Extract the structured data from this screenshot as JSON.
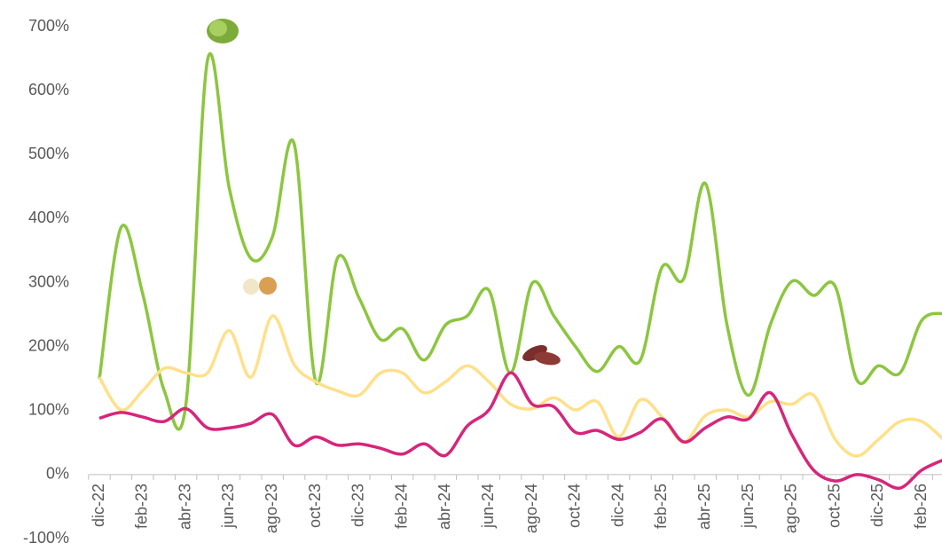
{
  "chart_data": {
    "type": "line",
    "categories": [
      "dic-22",
      null,
      "feb-23",
      null,
      "abr-23",
      null,
      "jun-23",
      null,
      "ago-23",
      null,
      "oct-23",
      null,
      "dic-23",
      null,
      "feb-24",
      null,
      "abr-24",
      null,
      "jun-24",
      null,
      "ago-24",
      null,
      "oct-24",
      null,
      "dic-24",
      null,
      "feb-25",
      null,
      "abr-25",
      null,
      "jun-25",
      null,
      "ago-25",
      null,
      "oct-25",
      null,
      "dic-25",
      null,
      "feb-26",
      null
    ],
    "series": [
      {
        "color": "#8cc63f",
        "values": [
          149,
          386,
          283,
          131,
          110,
          648,
          448,
          338,
          372,
          517,
          145,
          338,
          276,
          211,
          228,
          179,
          234,
          248,
          288,
          159,
          299,
          248,
          200,
          161,
          200,
          179,
          324,
          306,
          455,
          234,
          124,
          234,
          302,
          280,
          294,
          148,
          170,
          159,
          241,
          252
        ]
      },
      {
        "color": "#ffe08a",
        "values": [
          152,
          101,
          131,
          166,
          159,
          159,
          225,
          152,
          248,
          172,
          145,
          131,
          124,
          159,
          159,
          128,
          145,
          170,
          145,
          110,
          103,
          120,
          101,
          114,
          59,
          117,
          90,
          51,
          92,
          101,
          90,
          114,
          110,
          124,
          55,
          29,
          55,
          83,
          83,
          55
        ]
      },
      {
        "color": "#d6267b",
        "values": [
          88,
          97,
          90,
          83,
          103,
          73,
          73,
          80,
          94,
          46,
          59,
          46,
          48,
          41,
          32,
          48,
          30,
          76,
          101,
          159,
          110,
          106,
          66,
          69,
          55,
          66,
          87,
          51,
          73,
          90,
          87,
          128,
          62,
          7,
          -10,
          0,
          -8,
          -21,
          7,
          23
        ]
      }
    ],
    "ylim": [
      -100,
      700
    ],
    "yticks": [
      {
        "value": -100,
        "label": "-100%"
      },
      {
        "value": 0,
        "label": "0%"
      },
      {
        "value": 100,
        "label": "100%"
      },
      {
        "value": 200,
        "label": "200%"
      },
      {
        "value": 300,
        "label": "300%"
      },
      {
        "value": 400,
        "label": "400%"
      },
      {
        "value": 500,
        "label": "500%"
      },
      {
        "value": 600,
        "label": "600%"
      },
      {
        "value": 700,
        "label": "700%"
      }
    ],
    "grid": false
  }
}
